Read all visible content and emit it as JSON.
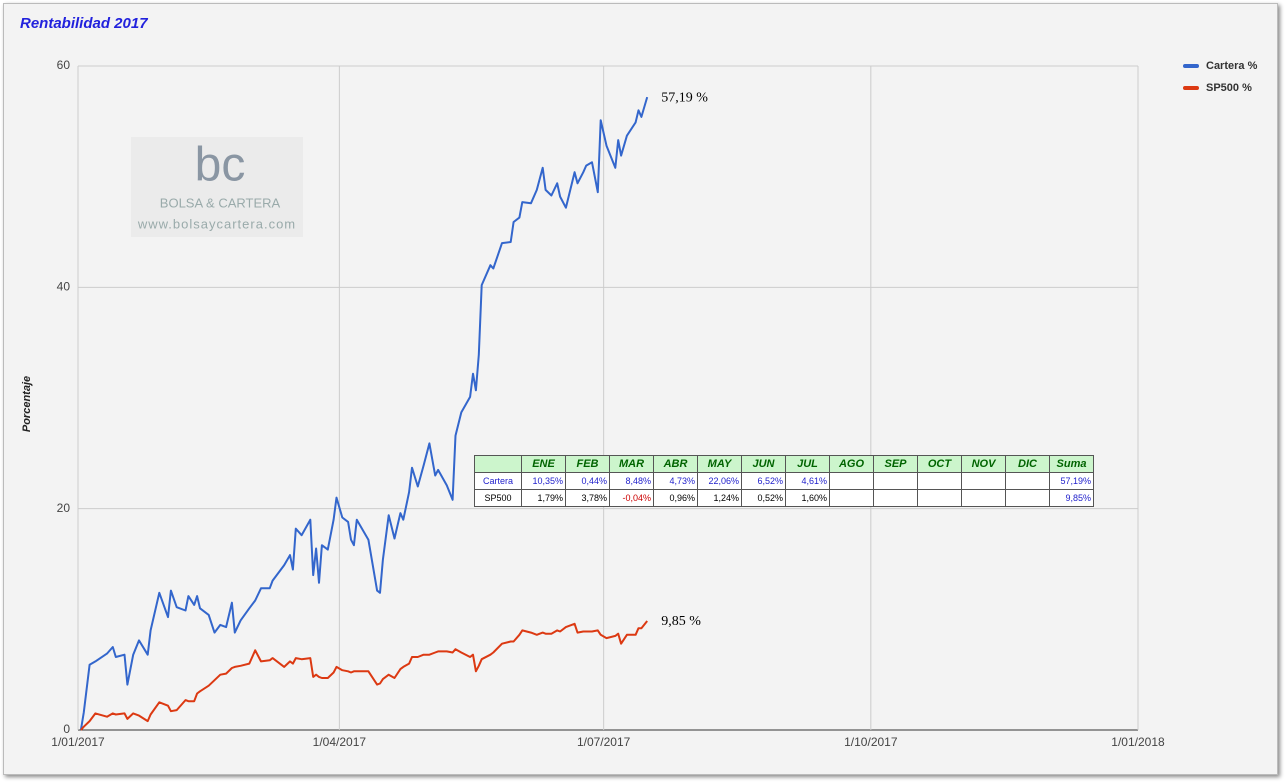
{
  "chart_data": {
    "type": "line",
    "title": "Rentabilidad 2017",
    "y_label": "Porcentaje",
    "x": [
      "2/01/2017",
      "3/01/2017",
      "5/01/2017",
      "7/01/2017",
      "11/01/2017",
      "13/01/2017",
      "14/01/2017",
      "17/01/2017",
      "18/01/2017",
      "20/01/2017",
      "22/01/2017",
      "25/01/2017",
      "26/01/2017",
      "29/01/2017",
      "1/02/2017",
      "2/02/2017",
      "4/02/2017",
      "7/02/2017",
      "8/02/2017",
      "10/02/2017",
      "11/02/2017",
      "12/02/2017",
      "15/02/2017",
      "17/02/2017",
      "19/02/2017",
      "21/02/2017",
      "23/02/2017",
      "24/02/2017",
      "26/02/2017",
      "1/03/2017",
      "3/03/2017",
      "5/03/2017",
      "8/03/2017",
      "9/03/2017",
      "13/03/2017",
      "15/03/2017",
      "16/03/2017",
      "17/03/2017",
      "19/03/2017",
      "22/03/2017",
      "23/03/2017",
      "24/03/2017",
      "25/03/2017",
      "26/03/2017",
      "28/03/2017",
      "30/03/2017",
      "31/03/2017",
      "2/04/2017",
      "4/04/2017",
      "5/04/2017",
      "6/04/2017",
      "7/04/2017",
      "11/04/2017",
      "14/04/2017",
      "15/04/2017",
      "16/04/2017",
      "18/04/2017",
      "20/04/2017",
      "22/04/2017",
      "23/04/2017",
      "25/04/2017",
      "26/04/2017",
      "28/04/2017",
      "30/04/2017",
      "2/05/2017",
      "4/05/2017",
      "5/05/2017",
      "8/05/2017",
      "10/05/2017",
      "11/05/2017",
      "13/05/2017",
      "16/05/2017",
      "17/05/2017",
      "18/05/2017",
      "19/05/2017",
      "20/05/2017",
      "23/05/2017",
      "24/05/2017",
      "27/05/2017",
      "30/05/2017",
      "31/05/2017",
      "2/06/2017",
      "3/06/2017",
      "6/06/2017",
      "8/06/2017",
      "10/06/2017",
      "11/06/2017",
      "13/06/2017",
      "15/06/2017",
      "16/06/2017",
      "18/06/2017",
      "21/06/2017",
      "22/06/2017",
      "24/06/2017",
      "25/06/2017",
      "27/06/2017",
      "29/06/2017",
      "30/06/2017",
      "2/07/2017",
      "5/07/2017",
      "6/07/2017",
      "7/07/2017",
      "9/07/2017",
      "12/07/2017",
      "13/07/2017",
      "14/07/2017",
      "16/07/2017"
    ],
    "series": [
      {
        "name": "Cartera %",
        "color": "#3366cc",
        "end_label": "57,19 %",
        "values": [
          0,
          1.6,
          5.9,
          6.2,
          6.9,
          7.5,
          6.6,
          6.8,
          4.1,
          6.8,
          8.1,
          6.8,
          9,
          12.4,
          10.2,
          12.6,
          11.1,
          10.8,
          12.1,
          11.3,
          12.1,
          11,
          10.4,
          8.8,
          9.5,
          9.3,
          11.5,
          8.8,
          9.9,
          11,
          11.7,
          12.8,
          12.8,
          13.5,
          14.9,
          15.8,
          14.5,
          18.2,
          17.6,
          19,
          14,
          16.4,
          13.3,
          16.7,
          16.3,
          19,
          21,
          19.2,
          18.8,
          17.2,
          16.7,
          19,
          17.2,
          12.6,
          12.4,
          15.4,
          19.4,
          17.3,
          19.6,
          19,
          21.5,
          23.7,
          22,
          23.9,
          25.9,
          23,
          23.5,
          22.1,
          20.8,
          26.6,
          28.7,
          30.1,
          32.2,
          30.7,
          33.9,
          40.2,
          42,
          41.7,
          44,
          44.1,
          45.9,
          46.3,
          47.7,
          47.6,
          48.8,
          50.8,
          48.8,
          48.3,
          49.4,
          48.2,
          47.2,
          50.4,
          49.4,
          50.4,
          51,
          51.3,
          48.6,
          55.1,
          52.8,
          50.8,
          53.3,
          51.9,
          53.7,
          54.9,
          56,
          55.4,
          57.19
        ]
      },
      {
        "name": "SP500 %",
        "color": "#dc3912",
        "end_label": "9,85 %",
        "values": [
          0,
          0.3,
          0.8,
          1.5,
          1.2,
          1.5,
          1.4,
          1.5,
          1,
          1.5,
          1.3,
          0.8,
          1.4,
          2.5,
          2.2,
          1.7,
          1.8,
          2.7,
          2.6,
          2.6,
          3.3,
          3.5,
          4,
          4.5,
          5,
          5.1,
          5.6,
          5.7,
          5.8,
          6,
          7.2,
          6.2,
          6.3,
          6.5,
          5.7,
          6.2,
          6,
          6.5,
          6.4,
          6.5,
          4.8,
          5,
          4.8,
          4.7,
          4.7,
          5.2,
          5.7,
          5.4,
          5.3,
          5.2,
          5.3,
          5.3,
          5.3,
          4.1,
          4.2,
          4.6,
          5,
          4.7,
          5.5,
          5.7,
          6,
          6.6,
          6.6,
          6.8,
          6.8,
          7,
          7.1,
          7.1,
          7,
          7.3,
          7,
          6.6,
          6.8,
          5.3,
          5.8,
          6.4,
          6.8,
          7,
          7.8,
          8,
          8,
          8.6,
          9,
          8.8,
          8.6,
          8.8,
          8.7,
          8.7,
          9,
          8.9,
          9.3,
          9.6,
          8.8,
          8.9,
          8.9,
          8.9,
          9,
          8.6,
          8.3,
          8.5,
          8.7,
          7.8,
          8.6,
          8.6,
          9.2,
          9.2,
          9.85
        ]
      }
    ],
    "xlim": [
      "1/01/2017",
      "1/01/2018"
    ],
    "xticks": [
      "1/01/2017",
      "1/04/2017",
      "1/07/2017",
      "1/10/2017",
      "1/01/2018"
    ],
    "ylim": [
      0,
      60
    ],
    "yticks": [
      0,
      20,
      40,
      60
    ],
    "grid": true,
    "legend": "right"
  },
  "watermark": {
    "logo": "bc",
    "brand": "BOLSA & CARTERA",
    "url": "www.bolsaycartera.com"
  },
  "table": {
    "header": [
      null,
      "ENE",
      "FEB",
      "MAR",
      "ABR",
      "MAY",
      "JUN",
      "JUL",
      "AGO",
      "SEP",
      "OCT",
      "NOV",
      "DIC",
      "Suma"
    ],
    "rows": [
      [
        "Cartera",
        "10,35%",
        "0,44%",
        "8,48%",
        "4,73%",
        "22,06%",
        "6,52%",
        "4,61%",
        null,
        null,
        null,
        null,
        null,
        "57,19%"
      ],
      [
        "SP500",
        "1,79%",
        "3,78%",
        "-0,04%",
        "0,96%",
        "1,24%",
        "0,52%",
        "1,60%",
        null,
        null,
        null,
        null,
        null,
        "9,85%"
      ]
    ]
  }
}
